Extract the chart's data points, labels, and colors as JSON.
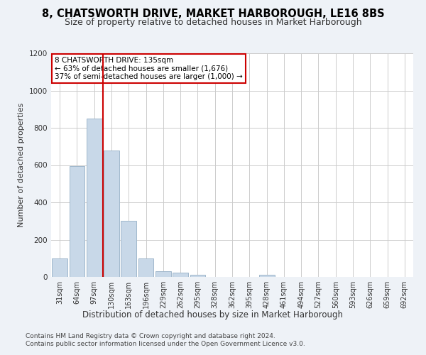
{
  "title": "8, CHATSWORTH DRIVE, MARKET HARBOROUGH, LE16 8BS",
  "subtitle": "Size of property relative to detached houses in Market Harborough",
  "xlabel": "Distribution of detached houses by size in Market Harborough",
  "ylabel": "Number of detached properties",
  "bar_color": "#c8d8e8",
  "bar_edge_color": "#a0b8cc",
  "categories": [
    "31sqm",
    "64sqm",
    "97sqm",
    "130sqm",
    "163sqm",
    "196sqm",
    "229sqm",
    "262sqm",
    "295sqm",
    "328sqm",
    "362sqm",
    "395sqm",
    "428sqm",
    "461sqm",
    "494sqm",
    "527sqm",
    "560sqm",
    "593sqm",
    "626sqm",
    "659sqm",
    "692sqm"
  ],
  "values": [
    100,
    595,
    850,
    680,
    300,
    100,
    30,
    22,
    10,
    0,
    0,
    0,
    12,
    0,
    0,
    0,
    0,
    0,
    0,
    0,
    0
  ],
  "marker_bin_index": 3,
  "ylim": [
    0,
    1200
  ],
  "yticks": [
    0,
    200,
    400,
    600,
    800,
    1000,
    1200
  ],
  "annotation_title": "8 CHATSWORTH DRIVE: 135sqm",
  "annotation_line1": "← 63% of detached houses are smaller (1,676)",
  "annotation_line2": "37% of semi-detached houses are larger (1,000) →",
  "footer1": "Contains HM Land Registry data © Crown copyright and database right 2024.",
  "footer2": "Contains public sector information licensed under the Open Government Licence v3.0.",
  "background_color": "#eef2f7",
  "plot_bg_color": "#ffffff",
  "grid_color": "#cccccc",
  "marker_color": "#cc0000",
  "annotation_box_edge_color": "#cc0000",
  "title_fontsize": 10.5,
  "subtitle_fontsize": 9,
  "ylabel_fontsize": 8,
  "xlabel_fontsize": 8.5,
  "tick_fontsize": 7,
  "footer_fontsize": 6.5
}
